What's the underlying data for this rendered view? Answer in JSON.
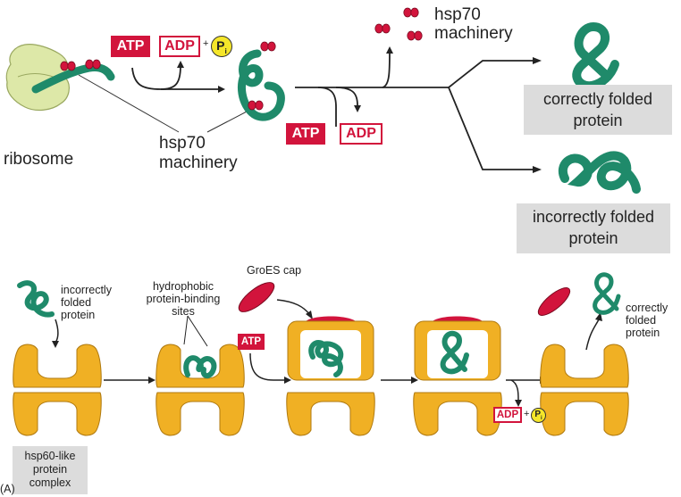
{
  "panel_a": {
    "ribosome_label": "ribosome",
    "hsp70_label_line1": "hsp70",
    "hsp70_label_line2": "machinery",
    "hsp70_top_line1": "hsp70",
    "hsp70_top_line2": "machinery",
    "atp": "ATP",
    "adp": "ADP",
    "plus": "+",
    "pi": "P",
    "pi_sub": "i",
    "correct_line1": "correctly folded",
    "correct_line2": "protein",
    "incorrect_line1": "incorrectly folded",
    "incorrect_line2": "protein"
  },
  "panel_b": {
    "incorrect_line1": "incorrectly",
    "incorrect_line2": "folded",
    "incorrect_line3": "protein",
    "hydrophobic_line1": "hydrophobic",
    "hydrophobic_line2": "protein-binding",
    "hydrophobic_line3": "sites",
    "groes_label": "GroES cap",
    "atp": "ATP",
    "adp": "ADP",
    "plus": "+",
    "pi": "P",
    "pi_sub": "i",
    "correct_line1": "correctly",
    "correct_line2": "folded",
    "correct_line3": "protein",
    "hsp60_line1": "hsp60-like",
    "hsp60_line2": "protein",
    "hsp60_line3": "complex",
    "panel_tag": "(A)"
  },
  "colors": {
    "ribosome": "#dde8a8",
    "protein": "#1f8a6a",
    "hsp70": "#d2143c",
    "chaperonin": "#f0b024",
    "groes": "#d2143c"
  }
}
